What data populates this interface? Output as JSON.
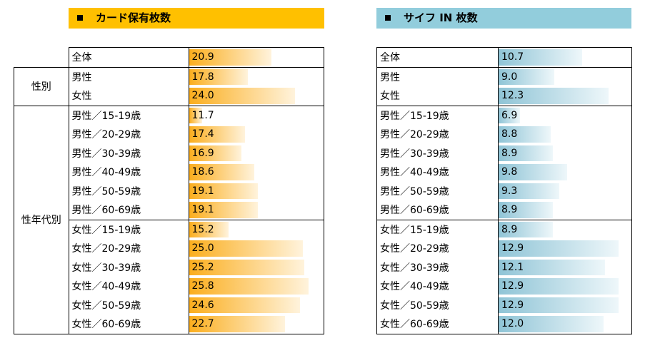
{
  "colors": {
    "card": "#FFC000",
    "card_bar": "#F9A825",
    "wallet": "#92CDDC",
    "wallet_bar": "#8FC4D6"
  },
  "chart_data": [
    {
      "type": "bar",
      "title": "カード保有枚数",
      "xlim": [
        10,
        27.7
      ],
      "groups": [
        "性別",
        "性年代別"
      ],
      "categories": [
        "全体",
        "男性",
        "女性",
        "男性／15-19歳",
        "男性／20-29歳",
        "男性／30-39歳",
        "男性／40-49歳",
        "男性／50-59歳",
        "男性／60-69歳",
        "女性／15-19歳",
        "女性／20-29歳",
        "女性／30-39歳",
        "女性／40-49歳",
        "女性／50-59歳",
        "女性／60-69歳"
      ],
      "values": [
        "20.9",
        "17.8",
        "24.0",
        "11.7",
        "17.4",
        "16.9",
        "18.6",
        "19.1",
        "19.1",
        "15.2",
        "25.0",
        "25.2",
        "25.8",
        "24.6",
        "22.7"
      ]
    },
    {
      "type": "bar",
      "title": "サイフ IN 枚数",
      "xlim": [
        5.6,
        13.7
      ],
      "categories": [
        "全体",
        "男性",
        "女性",
        "男性／15-19歳",
        "男性／20-29歳",
        "男性／30-39歳",
        "男性／40-49歳",
        "男性／50-59歳",
        "男性／60-69歳",
        "女性／15-19歳",
        "女性／20-29歳",
        "女性／30-39歳",
        "女性／40-49歳",
        "女性／50-59歳",
        "女性／60-69歳"
      ],
      "values": [
        "10.7",
        "9.0",
        "12.3",
        "6.9",
        "8.8",
        "8.9",
        "9.8",
        "9.3",
        "8.9",
        "8.9",
        "12.9",
        "12.1",
        "12.9",
        "12.9",
        "12.0"
      ]
    }
  ]
}
